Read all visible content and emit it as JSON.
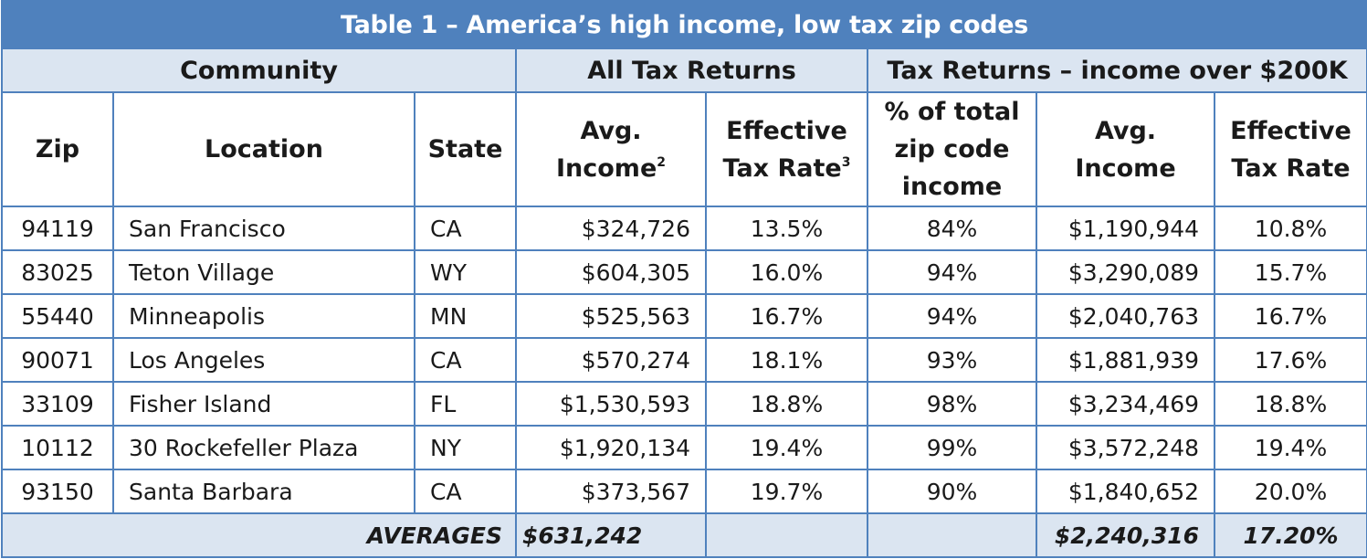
{
  "title": "Table 1 – America’s high income, low tax zip codes",
  "groups": {
    "community": "Community",
    "all_returns": "All Tax Returns",
    "over_200k": "Tax Returns – income over $200K"
  },
  "columns": {
    "zip": "Zip",
    "location": "Location",
    "state": "State",
    "avg_income_line1": "Avg.",
    "avg_income_line2": "Income",
    "avg_income_note": "2",
    "eff_rate_line1": "Effective",
    "eff_rate_line2": "Tax Rate",
    "eff_rate_note": "3",
    "pct_line1": "% of total",
    "pct_line2": "zip code",
    "pct_line3": "income",
    "avg200_line1": "Avg.",
    "avg200_line2": "Income",
    "eff200_line1": "Effective",
    "eff200_line2": "Tax Rate"
  },
  "rows": [
    {
      "zip": "94119",
      "location": "San Francisco",
      "state": "CA",
      "avg_income": "$324,726",
      "eff_rate": "13.5%",
      "pct_total": "84%",
      "avg_income_200k": "$1,190,944",
      "eff_rate_200k": "10.8%"
    },
    {
      "zip": "83025",
      "location": "Teton Village",
      "state": "WY",
      "avg_income": "$604,305",
      "eff_rate": "16.0%",
      "pct_total": "94%",
      "avg_income_200k": "$3,290,089",
      "eff_rate_200k": "15.7%"
    },
    {
      "zip": "55440",
      "location": "Minneapolis",
      "state": "MN",
      "avg_income": "$525,563",
      "eff_rate": "16.7%",
      "pct_total": "94%",
      "avg_income_200k": "$2,040,763",
      "eff_rate_200k": "16.7%"
    },
    {
      "zip": "90071",
      "location": "Los Angeles",
      "state": "CA",
      "avg_income": "$570,274",
      "eff_rate": "18.1%",
      "pct_total": "93%",
      "avg_income_200k": "$1,881,939",
      "eff_rate_200k": "17.6%"
    },
    {
      "zip": "33109",
      "location": "Fisher Island",
      "state": "FL",
      "avg_income": "$1,530,593",
      "eff_rate": "18.8%",
      "pct_total": "98%",
      "avg_income_200k": "$3,234,469",
      "eff_rate_200k": "18.8%"
    },
    {
      "zip": "10112",
      "location": "30 Rockefeller Plaza",
      "state": "NY",
      "avg_income": "$1,920,134",
      "eff_rate": "19.4%",
      "pct_total": "99%",
      "avg_income_200k": "$3,572,248",
      "eff_rate_200k": "19.4%"
    },
    {
      "zip": "93150",
      "location": "Santa Barbara",
      "state": "CA",
      "avg_income": "$373,567",
      "eff_rate": "19.7%",
      "pct_total": "90%",
      "avg_income_200k": "$1,840,652",
      "eff_rate_200k": "20.0%"
    }
  ],
  "averages": {
    "label": "AVERAGES",
    "avg_income": "$631,242",
    "eff_rate": "",
    "pct_total": "",
    "avg_income_200k": "$2,240,316",
    "eff_rate_200k": "17.20%"
  }
}
